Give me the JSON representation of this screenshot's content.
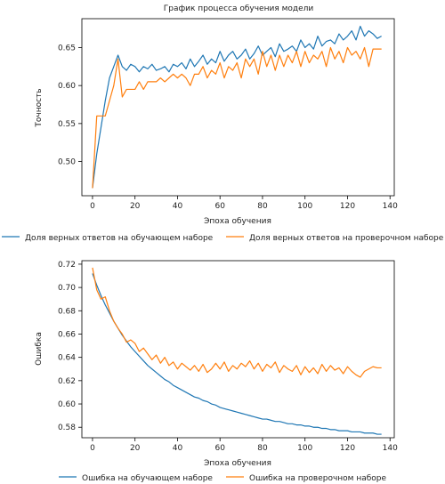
{
  "figure": {
    "title": "График процесса обучения модели"
  },
  "colors": {
    "train": "#1f77b4",
    "val": "#ff7f0e"
  },
  "chart_data": [
    {
      "type": "line",
      "title": "График процесса обучения модели",
      "xlabel": "Эпоха обучения",
      "ylabel": "Точность",
      "xlim": [
        -5,
        142
      ],
      "ylim": [
        0.455,
        0.688
      ],
      "xticks": [
        0,
        20,
        40,
        60,
        80,
        100,
        120,
        140
      ],
      "yticks": [
        0.5,
        0.55,
        0.6,
        0.65
      ],
      "ytick_labels": [
        "0.50",
        "0.55",
        "0.60",
        "0.65"
      ],
      "legend_position": "below",
      "grid": false,
      "series": [
        {
          "name": "Доля верных ответов на обучающем наборе",
          "color": "#1f77b4",
          "x": [
            0,
            2,
            4,
            6,
            8,
            10,
            12,
            14,
            16,
            18,
            20,
            22,
            24,
            26,
            28,
            30,
            32,
            34,
            36,
            38,
            40,
            42,
            44,
            46,
            48,
            50,
            52,
            54,
            56,
            58,
            60,
            62,
            64,
            66,
            68,
            70,
            72,
            74,
            76,
            78,
            80,
            82,
            84,
            86,
            88,
            90,
            92,
            94,
            96,
            98,
            100,
            102,
            104,
            106,
            108,
            110,
            112,
            114,
            116,
            118,
            120,
            122,
            124,
            126,
            128,
            130,
            132,
            134,
            136
          ],
          "values": [
            0.465,
            0.51,
            0.545,
            0.58,
            0.61,
            0.625,
            0.64,
            0.625,
            0.62,
            0.628,
            0.625,
            0.618,
            0.625,
            0.622,
            0.628,
            0.62,
            0.622,
            0.625,
            0.618,
            0.628,
            0.625,
            0.63,
            0.622,
            0.635,
            0.625,
            0.632,
            0.64,
            0.628,
            0.635,
            0.63,
            0.645,
            0.632,
            0.64,
            0.645,
            0.635,
            0.64,
            0.648,
            0.635,
            0.642,
            0.652,
            0.64,
            0.645,
            0.65,
            0.638,
            0.655,
            0.645,
            0.648,
            0.652,
            0.645,
            0.66,
            0.65,
            0.655,
            0.648,
            0.665,
            0.652,
            0.658,
            0.66,
            0.655,
            0.668,
            0.66,
            0.665,
            0.672,
            0.66,
            0.678,
            0.665,
            0.672,
            0.668,
            0.662,
            0.665
          ]
        },
        {
          "name": "Доля верных ответов на проверочном наборе",
          "color": "#ff7f0e",
          "x": [
            0,
            2,
            4,
            6,
            8,
            10,
            12,
            14,
            16,
            18,
            20,
            22,
            24,
            26,
            28,
            30,
            32,
            34,
            36,
            38,
            40,
            42,
            44,
            46,
            48,
            50,
            52,
            54,
            56,
            58,
            60,
            62,
            64,
            66,
            68,
            70,
            72,
            74,
            76,
            78,
            80,
            82,
            84,
            86,
            88,
            90,
            92,
            94,
            96,
            98,
            100,
            102,
            104,
            106,
            108,
            110,
            112,
            114,
            116,
            118,
            120,
            122,
            124,
            126,
            128,
            130,
            132,
            134,
            136
          ],
          "values": [
            0.465,
            0.56,
            0.56,
            0.56,
            0.58,
            0.6,
            0.635,
            0.585,
            0.595,
            0.595,
            0.595,
            0.605,
            0.595,
            0.605,
            0.605,
            0.605,
            0.61,
            0.605,
            0.61,
            0.615,
            0.61,
            0.615,
            0.61,
            0.6,
            0.615,
            0.615,
            0.625,
            0.61,
            0.62,
            0.615,
            0.63,
            0.61,
            0.625,
            0.62,
            0.63,
            0.61,
            0.635,
            0.625,
            0.635,
            0.615,
            0.645,
            0.625,
            0.64,
            0.62,
            0.64,
            0.625,
            0.64,
            0.63,
            0.645,
            0.625,
            0.645,
            0.63,
            0.64,
            0.635,
            0.645,
            0.625,
            0.65,
            0.635,
            0.645,
            0.63,
            0.65,
            0.64,
            0.645,
            0.635,
            0.65,
            0.625,
            0.648,
            0.648,
            0.648
          ]
        }
      ]
    },
    {
      "type": "line",
      "xlabel": "Эпоха обучения",
      "ylabel": "Ошибка",
      "xlim": [
        -5,
        142
      ],
      "ylim": [
        0.571,
        0.723
      ],
      "xticks": [
        0,
        20,
        40,
        60,
        80,
        100,
        120,
        140
      ],
      "yticks": [
        0.58,
        0.6,
        0.62,
        0.64,
        0.66,
        0.68,
        0.7,
        0.72
      ],
      "ytick_labels": [
        "0.58",
        "0.60",
        "0.62",
        "0.64",
        "0.66",
        "0.68",
        "0.70",
        "0.72"
      ],
      "legend_position": "below",
      "grid": false,
      "series": [
        {
          "name": "Ошибка на обучающем наборе",
          "color": "#1f77b4",
          "x": [
            0,
            2,
            4,
            6,
            8,
            10,
            12,
            14,
            16,
            18,
            20,
            22,
            24,
            26,
            28,
            30,
            32,
            34,
            36,
            38,
            40,
            42,
            44,
            46,
            48,
            50,
            52,
            54,
            56,
            58,
            60,
            62,
            64,
            66,
            68,
            70,
            72,
            74,
            76,
            78,
            80,
            82,
            84,
            86,
            88,
            90,
            92,
            94,
            96,
            98,
            100,
            102,
            104,
            106,
            108,
            110,
            112,
            114,
            116,
            118,
            120,
            122,
            124,
            126,
            128,
            130,
            132,
            134,
            136
          ],
          "values": [
            0.712,
            0.702,
            0.693,
            0.685,
            0.678,
            0.671,
            0.665,
            0.659,
            0.654,
            0.649,
            0.645,
            0.641,
            0.637,
            0.633,
            0.63,
            0.627,
            0.624,
            0.621,
            0.619,
            0.616,
            0.614,
            0.612,
            0.61,
            0.608,
            0.606,
            0.605,
            0.603,
            0.602,
            0.6,
            0.599,
            0.597,
            0.596,
            0.595,
            0.594,
            0.593,
            0.592,
            0.591,
            0.59,
            0.589,
            0.588,
            0.587,
            0.587,
            0.586,
            0.585,
            0.585,
            0.584,
            0.583,
            0.583,
            0.582,
            0.582,
            0.581,
            0.581,
            0.58,
            0.58,
            0.579,
            0.579,
            0.578,
            0.578,
            0.577,
            0.577,
            0.577,
            0.576,
            0.576,
            0.576,
            0.575,
            0.575,
            0.575,
            0.574,
            0.574
          ]
        },
        {
          "name": "Ошибка на проверочном наборе",
          "color": "#ff7f0e",
          "x": [
            0,
            2,
            4,
            6,
            8,
            10,
            12,
            14,
            16,
            18,
            20,
            22,
            24,
            26,
            28,
            30,
            32,
            34,
            36,
            38,
            40,
            42,
            44,
            46,
            48,
            50,
            52,
            54,
            56,
            58,
            60,
            62,
            64,
            66,
            68,
            70,
            72,
            74,
            76,
            78,
            80,
            82,
            84,
            86,
            88,
            90,
            92,
            94,
            96,
            98,
            100,
            102,
            104,
            106,
            108,
            110,
            112,
            114,
            116,
            118,
            120,
            122,
            124,
            126,
            128,
            130,
            132,
            134,
            136
          ],
          "values": [
            0.717,
            0.698,
            0.69,
            0.692,
            0.68,
            0.671,
            0.665,
            0.66,
            0.653,
            0.655,
            0.652,
            0.645,
            0.648,
            0.643,
            0.638,
            0.642,
            0.635,
            0.64,
            0.633,
            0.636,
            0.63,
            0.635,
            0.632,
            0.629,
            0.633,
            0.628,
            0.634,
            0.627,
            0.63,
            0.635,
            0.63,
            0.636,
            0.628,
            0.633,
            0.63,
            0.635,
            0.632,
            0.637,
            0.63,
            0.635,
            0.628,
            0.634,
            0.631,
            0.636,
            0.627,
            0.633,
            0.63,
            0.628,
            0.633,
            0.625,
            0.632,
            0.627,
            0.631,
            0.626,
            0.634,
            0.628,
            0.633,
            0.629,
            0.631,
            0.626,
            0.632,
            0.628,
            0.625,
            0.623,
            0.628,
            0.63,
            0.632,
            0.631,
            0.631
          ]
        }
      ]
    }
  ]
}
